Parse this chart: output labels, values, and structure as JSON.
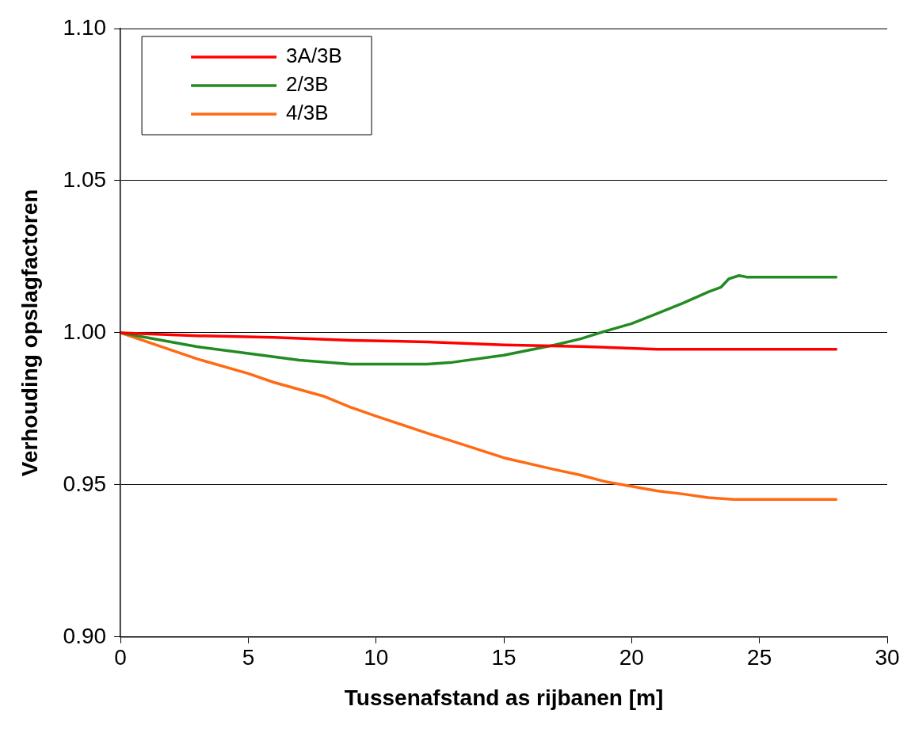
{
  "chart_data": {
    "type": "line",
    "xlabel": "Tussenafstand as rijbanen [m]",
    "ylabel": "Verhouding opslagfactoren",
    "xlim": [
      0,
      30
    ],
    "xticks": [
      0,
      5,
      10,
      15,
      20,
      25,
      30
    ],
    "ylim": [
      0.9,
      1.1
    ],
    "yticks": [
      {
        "value": 0.9,
        "label": "0.90"
      },
      {
        "value": 0.95,
        "label": "0.95"
      },
      {
        "value": 1.0,
        "label": "1.00"
      },
      {
        "value": 1.05,
        "label": "1.05"
      },
      {
        "value": 1.1,
        "label": "1.10"
      }
    ],
    "grid": "y",
    "legend": "top left",
    "marker": "none",
    "line_style": "solid",
    "series": [
      {
        "name": "3A/3B",
        "color": "#ff0000",
        "x": [
          0,
          3,
          6,
          9,
          12,
          15,
          18,
          21,
          24,
          28
        ],
        "values": [
          1.0,
          0.999,
          0.9985,
          0.9975,
          0.997,
          0.996,
          0.9955,
          0.9946,
          0.9946,
          0.9946
        ]
      },
      {
        "name": "2/3B",
        "color": "#228b22",
        "x": [
          0,
          3,
          5,
          7,
          9,
          12,
          13,
          15,
          17,
          18,
          19,
          20,
          21,
          22,
          23,
          23.5,
          23.8,
          24.2,
          24.5,
          28
        ],
        "values": [
          1.0,
          0.9954,
          0.9932,
          0.991,
          0.9897,
          0.9897,
          0.9903,
          0.9926,
          0.996,
          0.998,
          1.0006,
          1.003,
          1.0063,
          1.0097,
          1.0134,
          1.015,
          1.0177,
          1.0188,
          1.0183,
          1.0183
        ]
      },
      {
        "name": "4/3B",
        "color": "#ff6a13",
        "x": [
          0,
          3,
          5,
          6,
          8,
          9,
          10,
          12,
          13,
          15,
          17,
          18,
          19,
          20,
          21,
          22,
          23,
          24,
          28
        ],
        "values": [
          1.0,
          0.9914,
          0.9866,
          0.9837,
          0.979,
          0.9755,
          0.9726,
          0.967,
          0.9643,
          0.9589,
          0.955,
          0.9532,
          0.951,
          0.9495,
          0.948,
          0.947,
          0.9458,
          0.9452,
          0.9452
        ]
      }
    ]
  }
}
